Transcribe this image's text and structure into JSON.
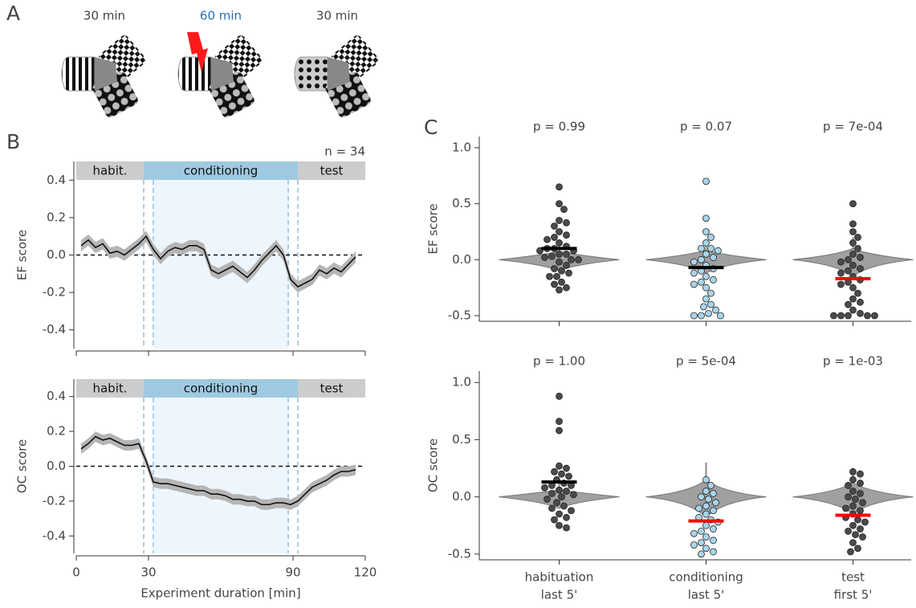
{
  "panels": [
    "A",
    "B",
    "C"
  ],
  "schematic": {
    "durations": [
      "30 min",
      "60 min",
      "30 min"
    ],
    "duration_colors": [
      "#444444",
      "#2a6fb0",
      "#444444"
    ]
  },
  "chart_data": [
    {
      "type": "line",
      "ylabel": "EF score",
      "annotation": "n = 34",
      "color": "#111111",
      "band_color": "#b5b5b5",
      "x": [
        2,
        5,
        8,
        11,
        14,
        17,
        20,
        23,
        26,
        29,
        32,
        35,
        38,
        41,
        44,
        47,
        50,
        53,
        56,
        59,
        62,
        65,
        68,
        71,
        74,
        77,
        80,
        83,
        86,
        89,
        92,
        95,
        98,
        101,
        104,
        107,
        110,
        113,
        116
      ],
      "values": [
        0.05,
        0.08,
        0.04,
        0.06,
        0.01,
        0.02,
        0.0,
        0.03,
        0.06,
        0.1,
        0.03,
        -0.02,
        0.02,
        0.04,
        0.03,
        0.05,
        0.05,
        0.03,
        -0.08,
        -0.1,
        -0.08,
        -0.06,
        -0.09,
        -0.12,
        -0.08,
        -0.03,
        0.01,
        0.05,
        0.0,
        -0.13,
        -0.17,
        -0.15,
        -0.13,
        -0.08,
        -0.1,
        -0.07,
        -0.09,
        -0.05,
        -0.01
      ],
      "error": [
        0.03,
        0.03,
        0.03,
        0.03,
        0.03,
        0.03,
        0.03,
        0.03,
        0.03,
        0.03,
        0.03,
        0.03,
        0.03,
        0.03,
        0.03,
        0.03,
        0.03,
        0.03,
        0.03,
        0.03,
        0.03,
        0.03,
        0.03,
        0.03,
        0.03,
        0.03,
        0.03,
        0.03,
        0.03,
        0.03,
        0.03,
        0.03,
        0.03,
        0.03,
        0.03,
        0.03,
        0.03,
        0.03,
        0.03
      ],
      "xlim": [
        0,
        120
      ],
      "xticks": [
        0,
        30,
        90,
        120
      ],
      "ylim": [
        -0.5,
        0.5
      ],
      "yticks": [
        -0.4,
        -0.2,
        {
          "value": 0,
          "label": "0.0"
        },
        0.2,
        0.4
      ],
      "hline": 0,
      "vlines": [
        28,
        32,
        88,
        92
      ],
      "phases": [
        {
          "label": "habit.",
          "start": 0,
          "end": 28,
          "color": "#cccccc"
        },
        {
          "label": "conditioning",
          "start": 28,
          "end": 92,
          "color": "#9ecae1"
        },
        {
          "label": "test",
          "start": 92,
          "end": 120,
          "color": "#cccccc"
        }
      ]
    },
    {
      "type": "line",
      "ylabel": "OC score",
      "xlabel": "Experiment duration [min]",
      "color": "#111111",
      "band_color": "#b5b5b5",
      "x": [
        2,
        5,
        8,
        11,
        14,
        17,
        20,
        23,
        26,
        29,
        32,
        35,
        38,
        41,
        44,
        47,
        50,
        53,
        56,
        59,
        62,
        65,
        68,
        71,
        74,
        77,
        80,
        83,
        86,
        89,
        92,
        95,
        98,
        101,
        104,
        107,
        110,
        113,
        116
      ],
      "values": [
        0.1,
        0.13,
        0.17,
        0.15,
        0.16,
        0.14,
        0.12,
        0.12,
        0.13,
        0.03,
        -0.09,
        -0.1,
        -0.1,
        -0.11,
        -0.12,
        -0.13,
        -0.14,
        -0.14,
        -0.16,
        -0.16,
        -0.17,
        -0.19,
        -0.19,
        -0.2,
        -0.2,
        -0.22,
        -0.22,
        -0.21,
        -0.21,
        -0.22,
        -0.2,
        -0.16,
        -0.12,
        -0.1,
        -0.08,
        -0.05,
        -0.03,
        -0.03,
        -0.02
      ],
      "error": [
        0.03,
        0.03,
        0.03,
        0.03,
        0.03,
        0.03,
        0.03,
        0.03,
        0.03,
        0.03,
        0.03,
        0.03,
        0.03,
        0.03,
        0.03,
        0.03,
        0.03,
        0.03,
        0.03,
        0.03,
        0.03,
        0.03,
        0.03,
        0.03,
        0.03,
        0.03,
        0.03,
        0.03,
        0.03,
        0.03,
        0.03,
        0.03,
        0.03,
        0.03,
        0.03,
        0.03,
        0.03,
        0.03,
        0.03
      ],
      "xlim": [
        0,
        120
      ],
      "xticks": [
        0,
        30,
        90,
        120
      ],
      "ylim": [
        -0.5,
        0.5
      ],
      "yticks": [
        -0.4,
        -0.2,
        {
          "value": 0,
          "label": "0.0"
        },
        0.2,
        0.4
      ],
      "hline": 0,
      "vlines": [
        28,
        32,
        88,
        92
      ],
      "phases": [
        {
          "label": "habit.",
          "start": 0,
          "end": 28,
          "color": "#cccccc"
        },
        {
          "label": "conditioning",
          "start": 28,
          "end": 92,
          "color": "#9ecae1"
        },
        {
          "label": "test",
          "start": 92,
          "end": 120,
          "color": "#cccccc"
        }
      ]
    },
    {
      "type": "strip",
      "ylabel": "EF score",
      "annotations": [
        "p = 0.99",
        "p = 0.07",
        "p = 7e-04"
      ],
      "ylim": [
        -0.55,
        1.1
      ],
      "yticks": [
        -0.5,
        {
          "value": 0,
          "label": "0.0"
        },
        0.5,
        {
          "value": 1,
          "label": "1.0"
        }
      ],
      "groups": [
        {
          "color": "#4a4a4a",
          "mean": 0.1,
          "mean_color": "#000000",
          "violin": [
            -0.1,
            0,
            0.15
          ],
          "values": [
            0.65,
            0.5,
            0.45,
            0.35,
            0.33,
            0.3,
            0.25,
            0.22,
            0.2,
            0.18,
            0.15,
            0.12,
            0.1,
            0.1,
            0.08,
            0.08,
            0.05,
            0.05,
            0.03,
            0.02,
            0.0,
            0.0,
            -0.02,
            -0.05,
            -0.08,
            -0.1,
            -0.12,
            -0.15,
            -0.15,
            -0.2,
            -0.22,
            -0.25,
            -0.27
          ]
        },
        {
          "color": "#a8d5ea",
          "mean": -0.07,
          "mean_color": "#000000",
          "violin": [
            -0.12,
            0,
            0.17
          ],
          "values": [
            0.7,
            0.37,
            0.25,
            0.2,
            0.15,
            0.1,
            0.1,
            0.08,
            0.05,
            0.02,
            0.0,
            -0.02,
            -0.05,
            -0.08,
            -0.1,
            -0.12,
            -0.15,
            -0.18,
            -0.2,
            -0.22,
            -0.25,
            -0.3,
            -0.35,
            -0.4,
            -0.42,
            -0.45,
            -0.48,
            -0.5,
            -0.5,
            -0.5
          ]
        },
        {
          "color": "#4a4a4a",
          "mean": -0.17,
          "mean_color": "#ff0000",
          "violin": [
            -0.15,
            0,
            0.2
          ],
          "values": [
            0.5,
            0.32,
            0.25,
            0.2,
            0.15,
            0.1,
            0.05,
            0.02,
            0.0,
            -0.02,
            -0.05,
            -0.08,
            -0.1,
            -0.12,
            -0.15,
            -0.18,
            -0.2,
            -0.22,
            -0.25,
            -0.3,
            -0.35,
            -0.38,
            -0.4,
            -0.45,
            -0.48,
            -0.5,
            -0.5,
            -0.5,
            -0.5,
            -0.5
          ]
        }
      ]
    },
    {
      "type": "strip",
      "ylabel": "OC score",
      "annotations": [
        "p = 1.00",
        "p = 5e-04",
        "p = 1e-03"
      ],
      "categories": [
        "habituation",
        "conditioning",
        "test"
      ],
      "category_sublabels": [
        "last 5'",
        "last 5'",
        "first 5'"
      ],
      "ylim": [
        -0.55,
        1.1
      ],
      "yticks": [
        -0.5,
        {
          "value": 0,
          "label": "0.0"
        },
        0.5,
        {
          "value": 1,
          "label": "1.0"
        }
      ],
      "groups": [
        {
          "color": "#4a4a4a",
          "mean": 0.13,
          "mean_color": "#000000",
          "violin": [
            -0.1,
            0,
            0.12
          ],
          "values": [
            0.88,
            0.66,
            0.58,
            0.27,
            0.25,
            0.22,
            0.2,
            0.18,
            0.15,
            0.12,
            0.1,
            0.1,
            0.08,
            0.06,
            0.05,
            0.03,
            0.02,
            0.0,
            -0.02,
            -0.05,
            -0.08,
            -0.1,
            -0.12,
            -0.15,
            -0.18,
            -0.2,
            -0.25,
            -0.27
          ]
        },
        {
          "color": "#a8d5ea",
          "mean": -0.21,
          "mean_color": "#ff0000",
          "violin": [
            -0.18,
            0,
            0.3
          ],
          "values": [
            0.15,
            0.1,
            0.05,
            0.03,
            0.0,
            -0.02,
            -0.05,
            -0.08,
            -0.1,
            -0.12,
            -0.15,
            -0.18,
            -0.2,
            -0.22,
            -0.25,
            -0.28,
            -0.3,
            -0.32,
            -0.35,
            -0.38,
            -0.4,
            -0.42,
            -0.45,
            -0.48,
            -0.5
          ]
        },
        {
          "color": "#4a4a4a",
          "mean": -0.16,
          "mean_color": "#ff0000",
          "violin": [
            -0.15,
            0,
            0.25
          ],
          "values": [
            0.22,
            0.2,
            0.15,
            0.12,
            0.1,
            0.05,
            0.03,
            0.0,
            -0.02,
            -0.05,
            -0.08,
            -0.1,
            -0.12,
            -0.15,
            -0.18,
            -0.2,
            -0.22,
            -0.25,
            -0.28,
            -0.3,
            -0.33,
            -0.35,
            -0.4,
            -0.45,
            -0.48
          ]
        }
      ]
    }
  ]
}
